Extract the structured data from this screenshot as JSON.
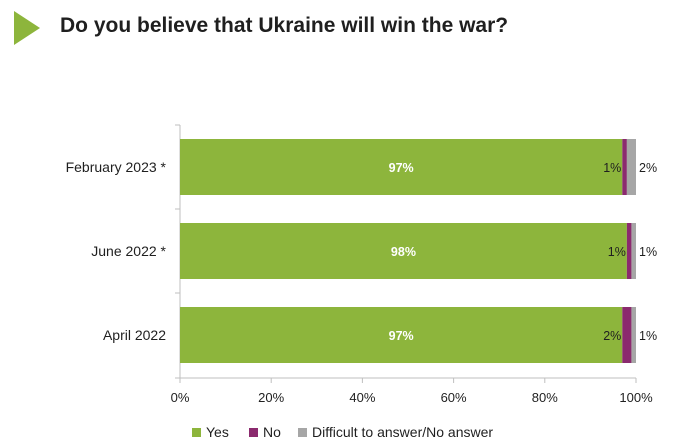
{
  "chart_data": {
    "type": "bar",
    "orientation": "horizontal",
    "stacked": true,
    "title": "Do you believe that Ukraine will win the war?",
    "categories": [
      "February 2023 *",
      "June 2022 *",
      "April 2022"
    ],
    "series": [
      {
        "name": "Yes",
        "color": "#8db53c",
        "values": [
          97,
          98,
          97
        ],
        "labels": [
          "97%",
          "98%",
          "97%"
        ]
      },
      {
        "name": "No",
        "color": "#8b2a6e",
        "values": [
          1,
          1,
          2
        ],
        "labels": [
          "1%",
          "1%",
          "2%"
        ]
      },
      {
        "name": "Difficult to answer/No answer",
        "color": "#a6a6a6",
        "values": [
          2,
          1,
          1
        ],
        "labels": [
          "2%",
          "1%",
          "1%"
        ]
      }
    ],
    "xlim": [
      0,
      100
    ],
    "xticks": [
      "0%",
      "20%",
      "40%",
      "60%",
      "80%",
      "100%"
    ],
    "grid": false,
    "legend_position": "bottom"
  }
}
